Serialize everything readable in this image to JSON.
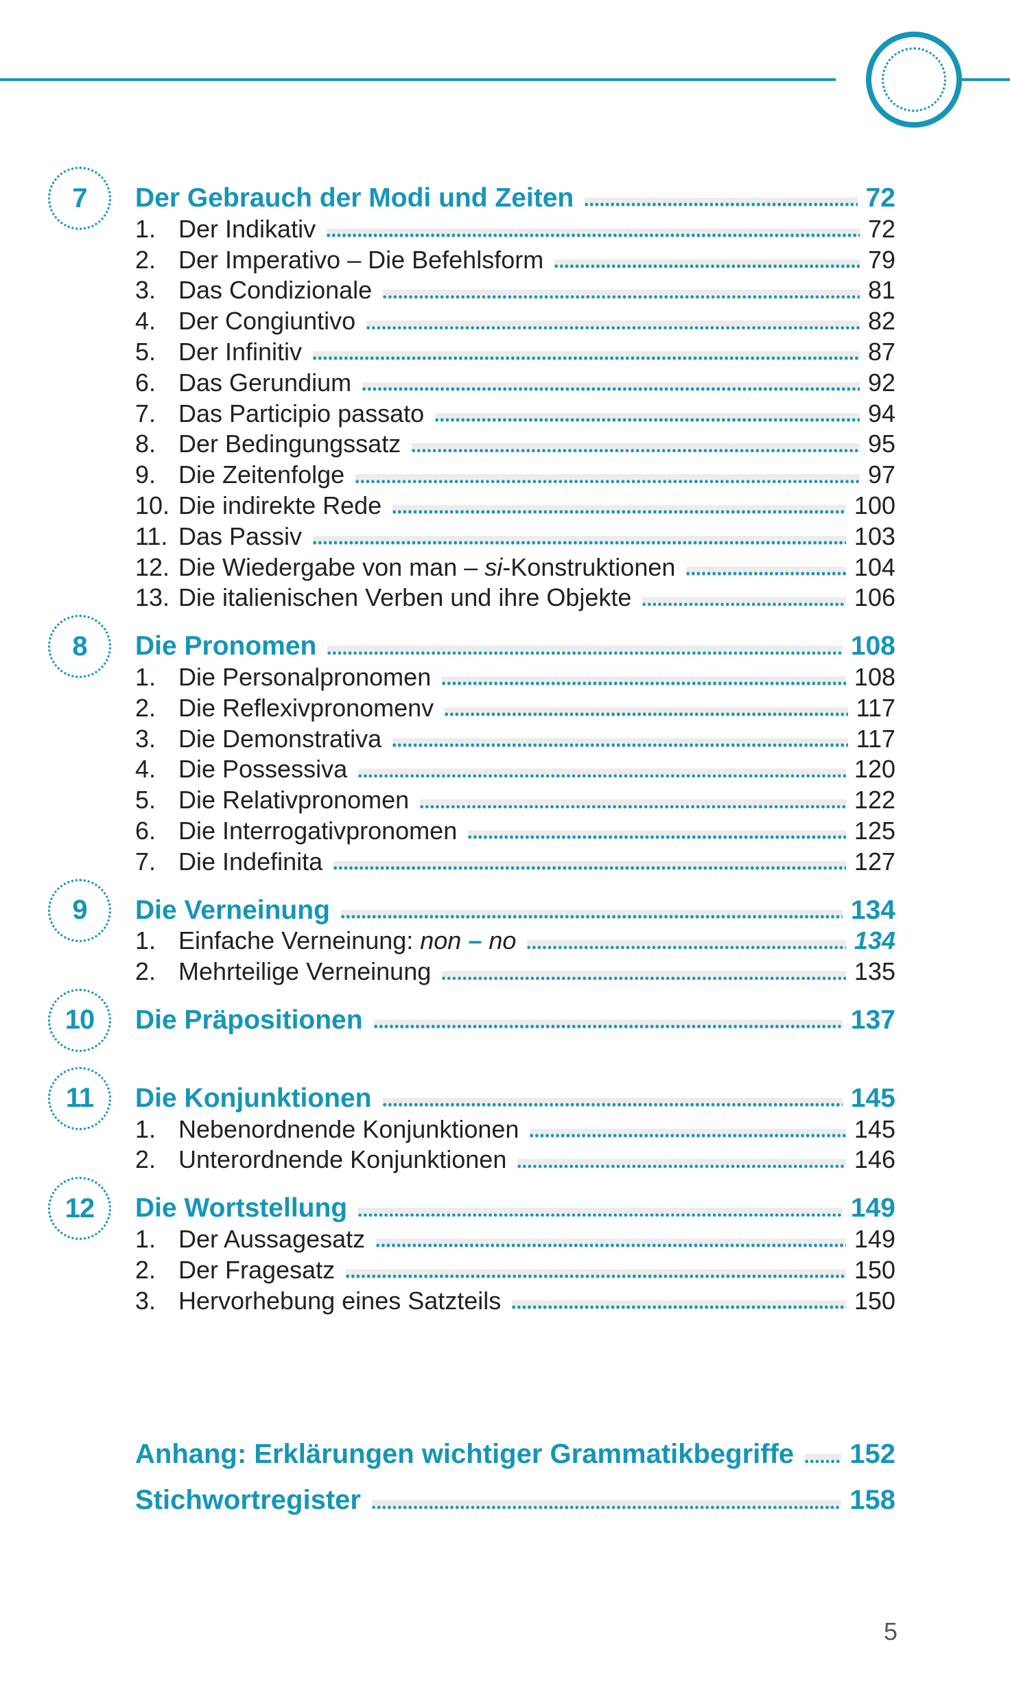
{
  "page": {
    "footer_page_number": "5",
    "colors": {
      "accent": "#1595b7",
      "body_text": "#232020",
      "leader_band": "#ececec",
      "footer_gray": "#58595b"
    }
  },
  "sections": [
    {
      "badge": "7",
      "title": "Der Gebrauch der Modi und Zeiten",
      "page": "72",
      "items": [
        {
          "num": "1.",
          "label": "Der Indikativ",
          "page": "72"
        },
        {
          "num": "2.",
          "label": "Der Imperativo – Die Befehlsform",
          "page": "79"
        },
        {
          "num": "3.",
          "label": "Das Condizionale",
          "page": "81"
        },
        {
          "num": "4.",
          "label": "Der Congiuntivo",
          "page": "82"
        },
        {
          "num": "5.",
          "label": "Der Infinitiv",
          "page": "87"
        },
        {
          "num": "6.",
          "label": "Das Gerundium",
          "page": "92"
        },
        {
          "num": "7.",
          "label": "Das Participio passato",
          "page": "94"
        },
        {
          "num": "8.",
          "label": "Der Bedingungssatz",
          "page": "95"
        },
        {
          "num": "9.",
          "label": "Die Zeitenfolge",
          "page": "97"
        },
        {
          "num": "10.",
          "label": "Die indirekte Rede",
          "page": "100"
        },
        {
          "num": "11.",
          "label": "Das Passiv",
          "page": "103"
        },
        {
          "num": "12.",
          "label_parts": [
            {
              "text": "Die Wiedergabe von man – "
            },
            {
              "text": "si",
              "style": "italic"
            },
            {
              "text": "-Konstruktionen"
            }
          ],
          "page": "104"
        },
        {
          "num": "13.",
          "label": "Die italienischen Verben und ihre Objekte",
          "page": "106"
        }
      ]
    },
    {
      "badge": "8",
      "title": "Die Pronomen",
      "page": "108",
      "items": [
        {
          "num": "1.",
          "label": "Die Personalpronomen",
          "page": "108"
        },
        {
          "num": "2.",
          "label": "Die Reflexivpronomenv",
          "page": "117"
        },
        {
          "num": "3.",
          "label": "Die Demonstrativa",
          "page": "117"
        },
        {
          "num": "4.",
          "label": "Die Possessiva",
          "page": "120"
        },
        {
          "num": "5.",
          "label": "Die Relativpronomen",
          "page": "122"
        },
        {
          "num": "6.",
          "label": "Die Interrogativpronomen",
          "page": "125"
        },
        {
          "num": "7.",
          "label": "Die Indefinita",
          "page": "127"
        }
      ]
    },
    {
      "badge": "9",
      "title": "Die Verneinung",
      "page": "134",
      "items": [
        {
          "num": "1.",
          "label_parts": [
            {
              "text": "Einfache Verneinung: "
            },
            {
              "text": "non",
              "style": "italic"
            },
            {
              "text": " – ",
              "style": "accent-bold"
            },
            {
              "text": "no",
              "style": "italic"
            }
          ],
          "page": "134",
          "page_style": "accent-bold-italic"
        },
        {
          "num": "2.",
          "label": "Mehrteilige Verneinung",
          "page": "135"
        }
      ]
    },
    {
      "badge": "10",
      "title": "Die Präpositionen",
      "page": "137",
      "items": []
    },
    {
      "badge": "11",
      "title": "Die Konjunktionen",
      "page": "145",
      "extra_space_before": true,
      "items": [
        {
          "num": "1.",
          "label": "Nebenordnende Konjunktionen",
          "page": "145"
        },
        {
          "num": "2.",
          "label": "Unterordnende Konjunktionen",
          "page": "146"
        }
      ]
    },
    {
      "badge": "12",
      "title": "Die Wortstellung",
      "page": "149",
      "items": [
        {
          "num": "1.",
          "label": "Der Aussagesatz",
          "page": "149"
        },
        {
          "num": "2.",
          "label": "Der Fragesatz",
          "page": "150"
        },
        {
          "num": "3.",
          "label": "Hervorhebung eines Satzteils",
          "page": "150"
        }
      ]
    }
  ],
  "appendix": [
    {
      "title": "Anhang: Erklärungen wichtiger Grammatikbegriffe",
      "page": "152"
    },
    {
      "title": "Stichwortregister",
      "page": "158"
    }
  ]
}
